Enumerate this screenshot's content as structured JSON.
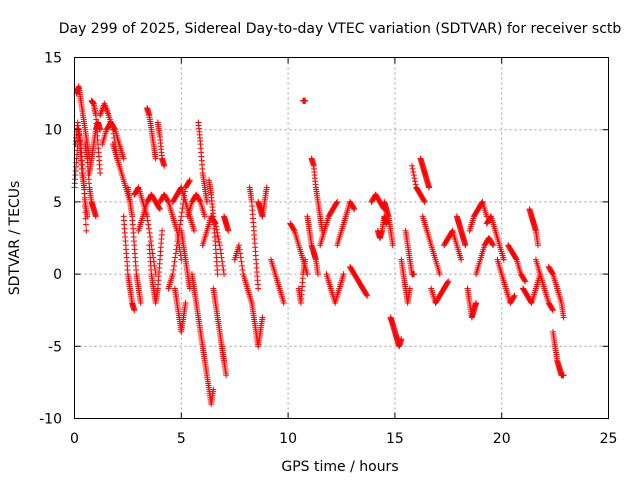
{
  "chart_data": {
    "type": "scatter",
    "title": "Day 299 of 2025, Sidereal Day-to-day VTEC variation (SDTVAR) for receiver sctb",
    "xlabel": "GPS time / hours",
    "ylabel": "SDTVAR / TECUs",
    "xlim": [
      0,
      25
    ],
    "ylim": [
      -10,
      15
    ],
    "xticks": [
      0,
      5,
      10,
      15,
      20,
      25
    ],
    "yticks": [
      -10,
      -5,
      0,
      5,
      10,
      15
    ],
    "xtick_labels": [
      "0",
      "5",
      "10",
      "15",
      "20",
      "25"
    ],
    "ytick_labels": [
      "-10",
      "-5",
      "0",
      "5",
      "10",
      "15"
    ],
    "grid": true,
    "marker": "+",
    "color": "#ff0000",
    "series": [
      {
        "name": "SDTVAR",
        "tracks": [
          {
            "x": [
              0.0,
              0.1,
              0.2,
              0.3,
              0.4,
              0.5,
              0.6
            ],
            "y": [
              6,
              8,
              10,
              9,
              7,
              5,
              4
            ]
          },
          {
            "x": [
              0.05,
              0.15,
              0.25,
              0.35,
              0.45,
              0.55
            ],
            "y": [
              9,
              10.5,
              9,
              7,
              6,
              3
            ]
          },
          {
            "x": [
              0.1,
              0.2,
              0.3,
              0.4,
              0.5,
              0.6,
              0.7
            ],
            "y": [
              12.5,
              13,
              12,
              11,
              10,
              9,
              8
            ]
          },
          {
            "x": [
              0.5,
              0.6,
              0.7,
              0.8,
              0.9,
              1.0
            ],
            "y": [
              9,
              8,
              6,
              5,
              4.5,
              4
            ]
          },
          {
            "x": [
              0.7,
              0.8,
              0.9,
              1.0,
              1.1,
              1.2
            ],
            "y": [
              7,
              8,
              9,
              10,
              10.5,
              10
            ]
          },
          {
            "x": [
              0.8,
              0.9,
              1.0,
              1.1,
              1.2
            ],
            "y": [
              12,
              11.8,
              11,
              9,
              7
            ]
          },
          {
            "x": [
              1.2,
              1.4,
              1.6,
              1.8,
              2.0
            ],
            "y": [
              11,
              11.8,
              11,
              10,
              8
            ]
          },
          {
            "x": [
              1.3,
              1.5,
              1.7,
              1.9,
              2.1,
              2.3
            ],
            "y": [
              9,
              10,
              10.5,
              10,
              9,
              8
            ]
          },
          {
            "x": [
              1.8,
              2.0,
              2.2,
              2.4,
              2.6
            ],
            "y": [
              9,
              8,
              7,
              6,
              5
            ]
          },
          {
            "x": [
              2.3,
              2.4,
              2.5,
              2.6,
              2.7,
              2.8
            ],
            "y": [
              4,
              2,
              0,
              -1,
              -2,
              -2.5
            ]
          },
          {
            "x": [
              2.5,
              2.6,
              2.7,
              2.8,
              2.9,
              3.0,
              3.1
            ],
            "y": [
              6,
              5,
              4,
              2,
              0,
              -1,
              -2
            ]
          },
          {
            "x": [
              2.8,
              3.0,
              3.2,
              3.4,
              3.6,
              3.8
            ],
            "y": [
              5.5,
              6,
              5,
              4,
              2,
              0
            ]
          },
          {
            "x": [
              3.0,
              3.2,
              3.4,
              3.6,
              3.8,
              4.0
            ],
            "y": [
              3,
              4,
              5,
              5.5,
              5,
              4.5
            ]
          },
          {
            "x": [
              3.4,
              3.5,
              3.6,
              3.7,
              3.8
            ],
            "y": [
              11.5,
              11,
              10,
              9,
              8
            ]
          },
          {
            "x": [
              3.5,
              3.6,
              3.7,
              3.8,
              3.9,
              4.0,
              4.1
            ],
            "y": [
              2,
              0,
              -1,
              -2,
              -1,
              1,
              3
            ]
          },
          {
            "x": [
              3.9,
              4.0,
              4.1,
              4.2
            ],
            "y": [
              10.5,
              9.5,
              8,
              7.5
            ]
          },
          {
            "x": [
              4.0,
              4.2,
              4.4,
              4.6,
              4.8,
              5.0
            ],
            "y": [
              5,
              5.5,
              5,
              4,
              3,
              1
            ]
          },
          {
            "x": [
              4.4,
              4.6,
              4.8,
              5.0,
              5.2,
              5.4
            ],
            "y": [
              -1,
              0,
              2,
              4,
              6,
              6.5
            ]
          },
          {
            "x": [
              4.6,
              4.8,
              5.0,
              5.2,
              5.4,
              5.6
            ],
            "y": [
              5,
              5.5,
              6,
              5,
              4,
              3
            ]
          },
          {
            "x": [
              4.7,
              4.8,
              4.9,
              5.0,
              5.1,
              5.2
            ],
            "y": [
              -1,
              -2,
              -3,
              -4,
              -3,
              -2
            ]
          },
          {
            "x": [
              5.0,
              5.1,
              5.2,
              5.3,
              5.4
            ],
            "y": [
              3,
              2,
              1,
              0,
              -1
            ]
          },
          {
            "x": [
              5.3,
              5.5,
              5.7,
              5.9,
              6.1
            ],
            "y": [
              4,
              5,
              5.5,
              5,
              4
            ]
          },
          {
            "x": [
              5.5,
              5.6,
              5.7,
              5.8,
              5.9
            ],
            "y": [
              0,
              -1,
              -2,
              -3,
              -4
            ]
          },
          {
            "x": [
              5.8,
              5.9,
              6.0,
              6.1,
              6.2
            ],
            "y": [
              10.5,
              9,
              7,
              6,
              5
            ]
          },
          {
            "x": [
              5.9,
              6.0,
              6.1,
              6.2,
              6.3,
              6.4,
              6.5
            ],
            "y": [
              -4,
              -5,
              -6,
              -7,
              -8,
              -9,
              -8
            ]
          },
          {
            "x": [
              6.0,
              6.2,
              6.4,
              6.6,
              6.8,
              7.0
            ],
            "y": [
              2,
              3,
              4,
              3.5,
              2,
              0
            ]
          },
          {
            "x": [
              6.3,
              6.4,
              6.5,
              6.6,
              6.7
            ],
            "y": [
              6.5,
              5.5,
              4,
              2,
              0
            ]
          },
          {
            "x": [
              6.5,
              6.6,
              6.7,
              6.8,
              6.9,
              7.0
            ],
            "y": [
              -1,
              -2,
              -3,
              -4,
              -5,
              -6
            ]
          },
          {
            "x": [
              6.9,
              7.0,
              7.1
            ],
            "y": [
              -5,
              -6,
              -7
            ]
          },
          {
            "x": [
              7.0,
              7.1,
              7.2
            ],
            "y": [
              4,
              3.5,
              3
            ]
          },
          {
            "x": [
              7.5,
              7.7,
              7.9,
              8.1,
              8.3
            ],
            "y": [
              1,
              2,
              0,
              -1,
              -2
            ]
          },
          {
            "x": [
              8.2,
              8.3,
              8.4,
              8.5,
              8.6
            ],
            "y": [
              6,
              5,
              3,
              1,
              -1
            ]
          },
          {
            "x": [
              8.3,
              8.4,
              8.5,
              8.6,
              8.7,
              8.8
            ],
            "y": [
              -2,
              -3,
              -4,
              -5,
              -4,
              -3
            ]
          },
          {
            "x": [
              8.6,
              8.7,
              8.8,
              8.9,
              9.0
            ],
            "y": [
              5,
              4.5,
              4,
              5,
              6
            ]
          },
          {
            "x": [
              9.2,
              9.4,
              9.6,
              9.8
            ],
            "y": [
              1,
              0,
              -1,
              -2
            ]
          },
          {
            "x": [
              10.1,
              10.3,
              10.5,
              10.7,
              10.9
            ],
            "y": [
              3.5,
              3,
              2,
              1,
              0
            ]
          },
          {
            "x": [
              10.5,
              10.6,
              10.7,
              10.8
            ],
            "y": [
              -1,
              -2,
              0,
              1
            ]
          },
          {
            "x": [
              10.7,
              10.8
            ],
            "y": [
              12,
              12
            ]
          },
          {
            "x": [
              10.9,
              11.0,
              11.1,
              11.2,
              11.3,
              11.4
            ],
            "y": [
              4,
              3,
              2,
              1.5,
              1,
              0
            ]
          },
          {
            "x": [
              11.1,
              11.2,
              11.3,
              11.4,
              11.5,
              11.6
            ],
            "y": [
              8,
              7.5,
              6,
              5,
              4,
              3
            ]
          },
          {
            "x": [
              11.5,
              11.7,
              11.9,
              12.1,
              12.3
            ],
            "y": [
              2,
              3,
              4,
              4.5,
              5
            ]
          },
          {
            "x": [
              11.8,
              12.0,
              12.2,
              12.4,
              12.6
            ],
            "y": [
              0,
              -1,
              -2,
              -1,
              0
            ]
          },
          {
            "x": [
              12.3,
              12.5,
              12.7,
              12.9,
              13.1
            ],
            "y": [
              2,
              3,
              4,
              5,
              4.5
            ]
          },
          {
            "x": [
              12.9,
              13.1,
              13.3,
              13.5,
              13.7
            ],
            "y": [
              0.5,
              0,
              -0.5,
              -1,
              -1.5
            ]
          },
          {
            "x": [
              13.9,
              14.1,
              14.3,
              14.5
            ],
            "y": [
              5,
              5.5,
              5,
              4.5
            ]
          },
          {
            "x": [
              14.2,
              14.3,
              14.4,
              14.5,
              14.6
            ],
            "y": [
              3,
              2.5,
              3,
              4,
              3.5
            ]
          },
          {
            "x": [
              14.5,
              14.6,
              14.7,
              14.8,
              14.9
            ],
            "y": [
              5,
              4.5,
              4,
              3,
              2
            ]
          },
          {
            "x": [
              14.8,
              14.9,
              15.0,
              15.1,
              15.2,
              15.3
            ],
            "y": [
              -3,
              -3.5,
              -4,
              -4.5,
              -5,
              -4.5
            ]
          },
          {
            "x": [
              15.3,
              15.4,
              15.5,
              15.6,
              15.7
            ],
            "y": [
              1,
              0,
              -1,
              -2,
              -1
            ]
          },
          {
            "x": [
              15.5,
              15.6,
              15.7,
              15.8,
              15.9
            ],
            "y": [
              3,
              2,
              1,
              0,
              0
            ]
          },
          {
            "x": [
              15.8,
              16.0,
              16.2,
              16.4
            ],
            "y": [
              7.5,
              6,
              5.5,
              5
            ]
          },
          {
            "x": [
              16.2,
              16.3,
              16.4,
              16.5,
              16.6
            ],
            "y": [
              8,
              7.5,
              7,
              6.5,
              6
            ]
          },
          {
            "x": [
              16.3,
              16.5,
              16.7,
              16.9,
              17.1
            ],
            "y": [
              4,
              3,
              2,
              1,
              0
            ]
          },
          {
            "x": [
              16.7,
              16.9,
              17.1,
              17.3,
              17.5
            ],
            "y": [
              -1,
              -2,
              -1.5,
              -1,
              -0.5
            ]
          },
          {
            "x": [
              17.3,
              17.5,
              17.7,
              17.9,
              18.1
            ],
            "y": [
              2,
              2.5,
              3,
              2,
              1
            ]
          },
          {
            "x": [
              17.9,
              18.0,
              18.1,
              18.2,
              18.3
            ],
            "y": [
              4,
              3.5,
              3,
              2.5,
              2
            ]
          },
          {
            "x": [
              18.4,
              18.5,
              18.6,
              18.7,
              18.8
            ],
            "y": [
              -1,
              -2,
              -3,
              -2.5,
              -2
            ]
          },
          {
            "x": [
              18.5,
              18.7,
              18.9,
              19.1,
              19.3
            ],
            "y": [
              3,
              4,
              4.5,
              5,
              4
            ]
          },
          {
            "x": [
              18.8,
              19.0,
              19.2,
              19.4,
              19.6
            ],
            "y": [
              0,
              1,
              2,
              2.5,
              2
            ]
          },
          {
            "x": [
              19.3,
              19.5,
              19.7,
              19.9,
              20.1
            ],
            "y": [
              3.5,
              4,
              3,
              2,
              1
            ]
          },
          {
            "x": [
              19.8,
              20.0,
              20.2,
              20.4,
              20.6
            ],
            "y": [
              1,
              0,
              -1,
              -2,
              -1.5
            ]
          },
          {
            "x": [
              20.3,
              20.5,
              20.7,
              20.9,
              21.1
            ],
            "y": [
              2,
              1.5,
              1,
              0,
              -0.5
            ]
          },
          {
            "x": [
              21.0,
              21.2,
              21.4,
              21.6,
              21.8
            ],
            "y": [
              -1,
              -1.5,
              -2,
              -1,
              0
            ]
          },
          {
            "x": [
              21.3,
              21.4,
              21.5,
              21.6,
              21.7
            ],
            "y": [
              4.5,
              4,
              3.5,
              3,
              2
            ]
          },
          {
            "x": [
              21.6,
              21.8,
              22.0,
              22.2,
              22.4
            ],
            "y": [
              1,
              0,
              -1,
              -2,
              -2.5
            ]
          },
          {
            "x": [
              22.2,
              22.4,
              22.6,
              22.8,
              22.9
            ],
            "y": [
              0.5,
              0,
              -1,
              -2,
              -3
            ]
          },
          {
            "x": [
              22.4,
              22.5,
              22.6,
              22.7,
              22.8,
              22.9
            ],
            "y": [
              -4,
              -5,
              -6,
              -6.5,
              -7,
              -7
            ]
          }
        ]
      }
    ]
  }
}
